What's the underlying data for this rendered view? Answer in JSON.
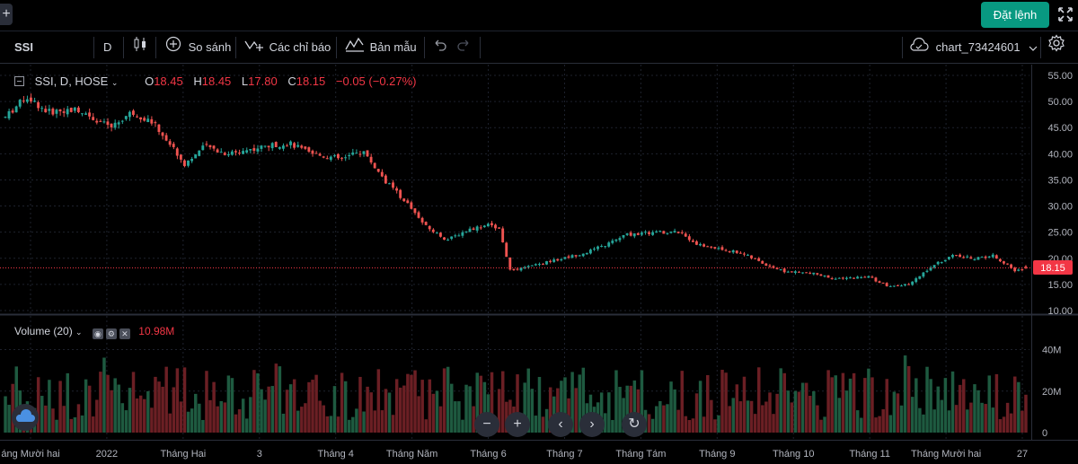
{
  "topbar": {
    "plus_label": "+",
    "order_button": "Đặt lệnh"
  },
  "toolbar": {
    "symbol": "SSI",
    "interval": "D",
    "compare_label": "So sánh",
    "indicators_label": "Các chỉ báo",
    "templates_label": "Bản mẫu",
    "chart_name": "chart_73424601"
  },
  "legend": {
    "symbol_line": "SSI, D, HOSE",
    "o_label": "O",
    "o_value": "18.45",
    "h_label": "H",
    "h_value": "18.45",
    "l_label": "L",
    "l_value": "17.80",
    "c_label": "C",
    "c_value": "18.15",
    "change": "−0.05 (−0.27%)"
  },
  "volume_legend": {
    "label": "Volume (20)",
    "value": "10.98M"
  },
  "price_axis": {
    "ticks": [
      "55.00",
      "50.00",
      "45.00",
      "40.00",
      "35.00",
      "30.00",
      "25.00",
      "20.00",
      "15.00",
      "10.00"
    ],
    "last_price": "18.15"
  },
  "volume_axis": {
    "ticks": [
      "40M",
      "20M",
      "0"
    ]
  },
  "time_axis": {
    "labels": [
      "áng Mười hai",
      "2022",
      "Tháng Hai",
      "3",
      "Tháng 4",
      "Tháng Năm",
      "Tháng 6",
      "Tháng 7",
      "Tháng Tám",
      "Tháng 9",
      "Tháng 10",
      "Tháng 11",
      "Tháng Mười hai",
      "27"
    ]
  },
  "colors": {
    "up": "#26a69a",
    "down": "#ef5350",
    "vol_up": "#1e5a40",
    "vol_down": "#6b1f24",
    "accent": "#089981"
  },
  "chart_data": {
    "type": "candlestick",
    "title": "SSI, D, HOSE",
    "ylim": [
      10,
      55
    ],
    "price_path": [
      [
        0,
        47
      ],
      [
        2,
        51
      ],
      [
        4,
        48
      ],
      [
        7,
        48.5
      ],
      [
        10,
        45
      ],
      [
        12,
        48
      ],
      [
        14,
        46
      ],
      [
        16,
        41
      ],
      [
        17,
        38
      ],
      [
        19,
        41.5
      ],
      [
        21,
        40
      ],
      [
        25,
        41.5
      ],
      [
        27,
        42
      ],
      [
        29,
        40
      ],
      [
        32,
        39
      ],
      [
        34,
        40.5
      ],
      [
        36,
        35
      ],
      [
        38,
        31
      ],
      [
        40,
        26
      ],
      [
        42,
        23.5
      ],
      [
        44,
        25.5
      ],
      [
        46,
        26.5
      ],
      [
        47,
        25.5
      ],
      [
        48,
        17.5
      ],
      [
        50,
        18.5
      ],
      [
        52,
        19.5
      ],
      [
        55,
        21
      ],
      [
        57,
        22.5
      ],
      [
        59,
        24.5
      ],
      [
        62,
        25
      ],
      [
        64,
        25
      ],
      [
        66,
        22.5
      ],
      [
        70,
        21
      ],
      [
        72,
        19
      ],
      [
        74,
        17.5
      ],
      [
        77,
        17
      ],
      [
        79,
        16
      ],
      [
        82,
        16.5
      ],
      [
        84,
        14.5
      ],
      [
        86,
        15
      ],
      [
        88,
        18.5
      ],
      [
        90,
        20.5
      ],
      [
        92,
        20
      ],
      [
        94,
        20.5
      ],
      [
        96,
        17.5
      ],
      [
        97,
        18.15
      ]
    ],
    "last_close": 18.15,
    "volume_ylim": [
      0,
      45
    ],
    "volume_unit": "M"
  }
}
